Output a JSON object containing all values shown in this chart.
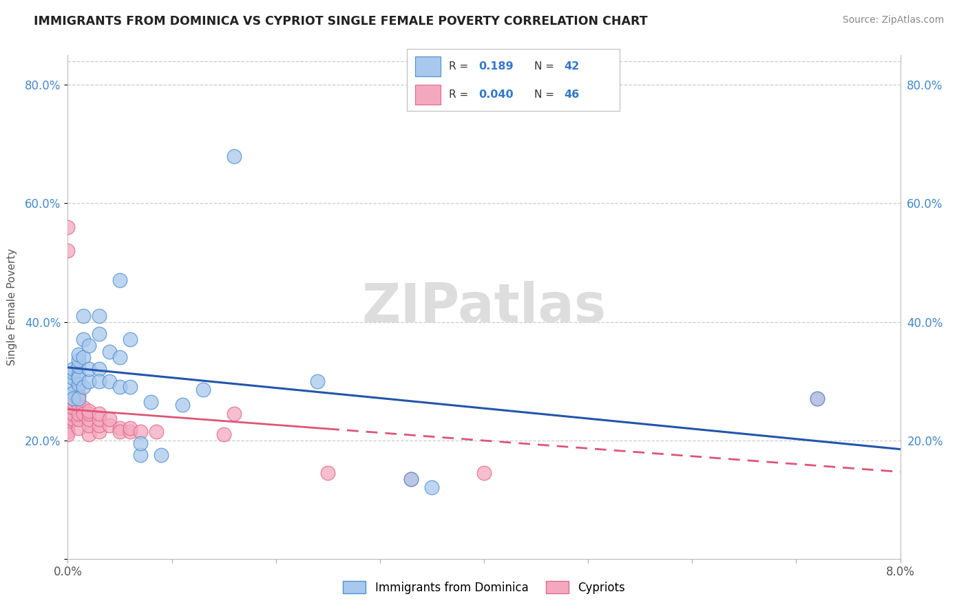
{
  "title": "IMMIGRANTS FROM DOMINICA VS CYPRIOT SINGLE FEMALE POVERTY CORRELATION CHART",
  "source": "Source: ZipAtlas.com",
  "ylabel": "Single Female Poverty",
  "xlim": [
    0.0,
    0.08
  ],
  "ylim": [
    0.0,
    0.85
  ],
  "watermark": "ZIPatlas",
  "r1": "0.189",
  "n1": "42",
  "r2": "0.040",
  "n2": "46",
  "blue_fill": "#A8C8EE",
  "blue_edge": "#5090CC",
  "pink_fill": "#F4A8C0",
  "pink_edge": "#E06888",
  "blue_line": "#2255AA",
  "pink_line": "#DD5577",
  "grid_color": "#CCCCCC",
  "dominica_x": [
    0.0005,
    0.0005,
    0.0005,
    0.0005,
    0.0005,
    0.0005,
    0.001,
    0.001,
    0.001,
    0.001,
    0.001,
    0.001,
    0.001,
    0.0015,
    0.0015,
    0.0015,
    0.0015,
    0.002,
    0.002,
    0.002,
    0.003,
    0.003,
    0.003,
    0.003,
    0.004,
    0.004,
    0.005,
    0.005,
    0.005,
    0.006,
    0.006,
    0.007,
    0.007,
    0.008,
    0.009,
    0.011,
    0.013,
    0.016,
    0.024,
    0.033,
    0.035,
    0.072
  ],
  "dominica_y": [
    0.295,
    0.305,
    0.315,
    0.28,
    0.32,
    0.27,
    0.31,
    0.295,
    0.305,
    0.325,
    0.335,
    0.345,
    0.27,
    0.34,
    0.37,
    0.41,
    0.29,
    0.3,
    0.32,
    0.36,
    0.32,
    0.38,
    0.41,
    0.3,
    0.3,
    0.35,
    0.34,
    0.47,
    0.29,
    0.29,
    0.37,
    0.175,
    0.195,
    0.265,
    0.175,
    0.26,
    0.285,
    0.68,
    0.3,
    0.135,
    0.12,
    0.27
  ],
  "cypriot_x": [
    0.0,
    0.0,
    0.0,
    0.0,
    0.0,
    0.0,
    0.0,
    0.0,
    0.0005,
    0.0005,
    0.0005,
    0.0005,
    0.0005,
    0.001,
    0.001,
    0.001,
    0.001,
    0.001,
    0.001,
    0.0015,
    0.0015,
    0.002,
    0.002,
    0.002,
    0.002,
    0.002,
    0.003,
    0.003,
    0.003,
    0.003,
    0.004,
    0.004,
    0.005,
    0.005,
    0.006,
    0.006,
    0.007,
    0.0085,
    0.015,
    0.016,
    0.025,
    0.033,
    0.04,
    0.072,
    0.0,
    0.0
  ],
  "cypriot_y": [
    0.265,
    0.255,
    0.245,
    0.235,
    0.225,
    0.22,
    0.215,
    0.21,
    0.235,
    0.245,
    0.255,
    0.265,
    0.27,
    0.22,
    0.235,
    0.245,
    0.26,
    0.275,
    0.29,
    0.255,
    0.245,
    0.21,
    0.225,
    0.235,
    0.245,
    0.25,
    0.215,
    0.225,
    0.235,
    0.245,
    0.225,
    0.235,
    0.22,
    0.215,
    0.215,
    0.22,
    0.215,
    0.215,
    0.21,
    0.245,
    0.145,
    0.135,
    0.145,
    0.27,
    0.56,
    0.52
  ]
}
